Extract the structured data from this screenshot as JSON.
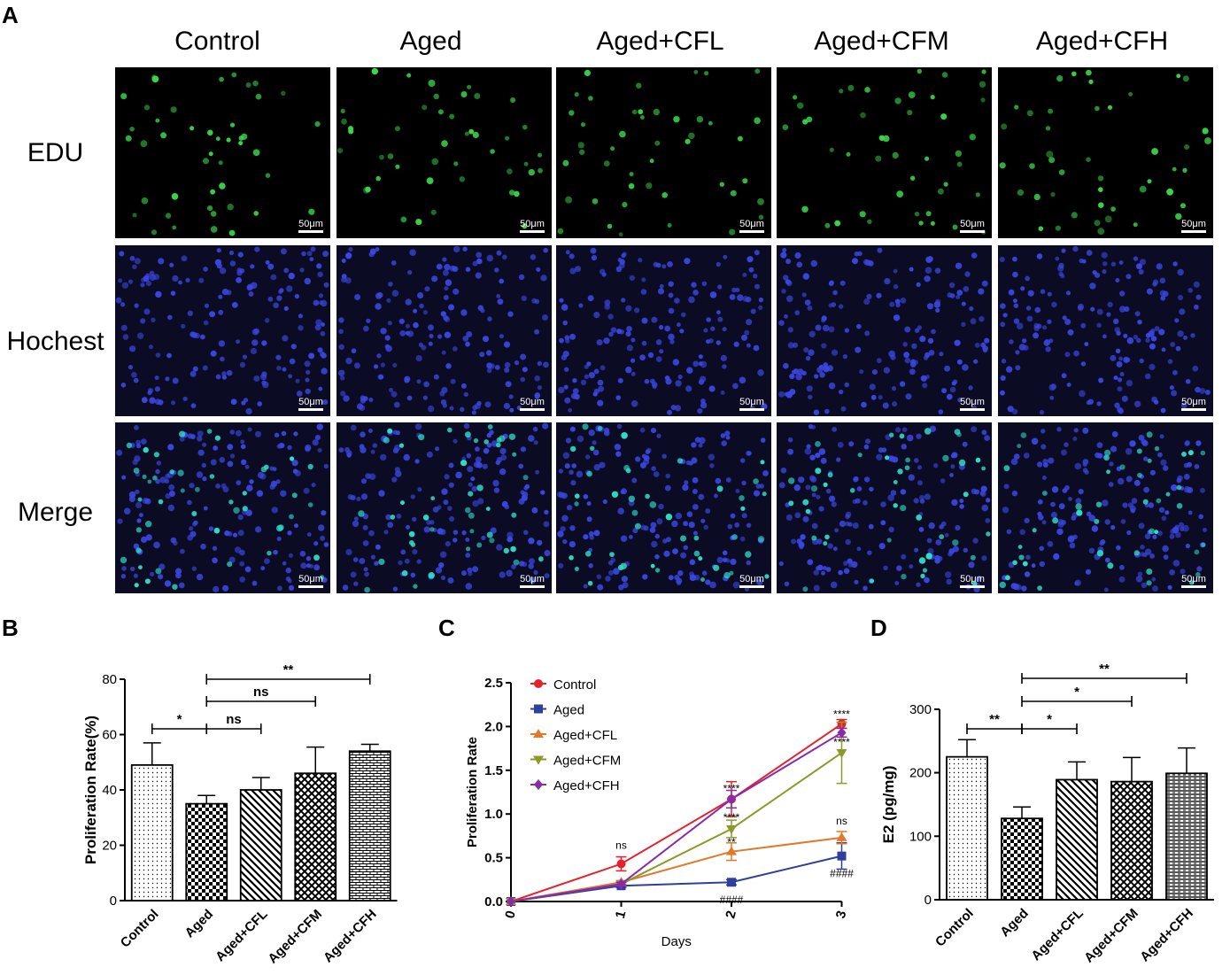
{
  "panels": {
    "a": "A",
    "b": "B",
    "c": "C",
    "d": "D"
  },
  "microscopy": {
    "columns": [
      "Control",
      "Aged",
      "Aged+CFL",
      "Aged+CFM",
      "Aged+CFH"
    ],
    "rows": [
      "EDU",
      "Hochest",
      "Merge"
    ],
    "scale_bar": "50μm",
    "colors": {
      "edu": "#39d84a",
      "hoechst": "#3a46e0",
      "merge_cyan": "#2fe0c8",
      "background": "#000000"
    }
  },
  "chart_data": [
    {
      "id": "B",
      "type": "bar",
      "categories": [
        "Control",
        "Aged",
        "Aged+CFL",
        "Aged+CFM",
        "Aged+CFH"
      ],
      "values": [
        49,
        35,
        40,
        46,
        54
      ],
      "errors": [
        8,
        3,
        4.5,
        9.5,
        2.5
      ],
      "patterns": [
        "dots",
        "checker",
        "diagonal",
        "crosshatch",
        "brick"
      ],
      "ylabel": "Proliferation Rate(%)",
      "ylim": [
        0,
        80
      ],
      "yticks": [
        0,
        20,
        40,
        60,
        80
      ],
      "significance": [
        {
          "from": 0,
          "to": 1,
          "label": "*"
        },
        {
          "from": 1,
          "to": 2,
          "label": "ns"
        },
        {
          "from": 1,
          "to": 3,
          "label": "ns"
        },
        {
          "from": 1,
          "to": 4,
          "label": "**"
        }
      ]
    },
    {
      "id": "C",
      "type": "line",
      "x": [
        0,
        1,
        2,
        3
      ],
      "xlabel": "Days",
      "ylabel": "Proliferation Rate",
      "ylim": [
        0,
        2.5
      ],
      "yticks": [
        "0.0",
        "0.5",
        "1.0",
        "1.5",
        "2.0",
        "2.5"
      ],
      "xticks": [
        "0",
        "1",
        "2",
        "3"
      ],
      "legend_position": "top-left",
      "series": [
        {
          "name": "Control",
          "color": "#e8202a",
          "marker": "circle",
          "values": [
            0,
            0.43,
            1.17,
            2.03
          ],
          "errors": [
            0,
            0.08,
            0.2,
            0.05
          ]
        },
        {
          "name": "Aged",
          "color": "#2e3f9e",
          "marker": "square",
          "values": [
            0,
            0.18,
            0.22,
            0.52
          ],
          "errors": [
            0,
            0.02,
            0.03,
            0.15
          ]
        },
        {
          "name": "Aged+CFL",
          "color": "#e07a2a",
          "marker": "triangle",
          "values": [
            0,
            0.22,
            0.57,
            0.73
          ],
          "errors": [
            0,
            0.02,
            0.1,
            0.07
          ]
        },
        {
          "name": "Aged+CFM",
          "color": "#8d9a2a",
          "marker": "triangle-down",
          "values": [
            0,
            0.2,
            0.83,
            1.7
          ],
          "errors": [
            0,
            0.02,
            0.1,
            0.35
          ]
        },
        {
          "name": "Aged+CFH",
          "color": "#8b2aa8",
          "marker": "diamond",
          "values": [
            0,
            0.2,
            1.17,
            1.93
          ],
          "errors": [
            0,
            0.02,
            0.1,
            0.05
          ]
        }
      ],
      "annotations": [
        {
          "x": 1,
          "y": 0.6,
          "text": "ns"
        },
        {
          "x": 2,
          "y": 1.25,
          "text": "****"
        },
        {
          "x": 2,
          "y": 0.92,
          "text": "****"
        },
        {
          "x": 2,
          "y": 0.64,
          "text": "**"
        },
        {
          "x": 2,
          "y": -0.02,
          "text": "####"
        },
        {
          "x": 3,
          "y": 2.1,
          "text": "****"
        },
        {
          "x": 3,
          "y": 1.78,
          "text": "****"
        },
        {
          "x": 3,
          "y": 0.88,
          "text": "ns"
        },
        {
          "x": 3,
          "y": 0.28,
          "text": "####"
        }
      ]
    },
    {
      "id": "D",
      "type": "bar",
      "categories": [
        "Control",
        "Aged",
        "Aged+CFL",
        "Aged+CFM",
        "Aged+CFH"
      ],
      "values": [
        225,
        128,
        189,
        186,
        199
      ],
      "errors": [
        27,
        18,
        28,
        38,
        40
      ],
      "patterns": [
        "dots",
        "checker",
        "diagonal",
        "crosshatch",
        "hlines"
      ],
      "ylabel": "E2 (pg/mg)",
      "ylim": [
        0,
        350
      ],
      "yticks": [
        0,
        100,
        200,
        300
      ],
      "significance": [
        {
          "from": 0,
          "to": 1,
          "label": "**"
        },
        {
          "from": 1,
          "to": 2,
          "label": "*"
        },
        {
          "from": 1,
          "to": 3,
          "label": "*"
        },
        {
          "from": 1,
          "to": 4,
          "label": "**"
        }
      ]
    }
  ]
}
